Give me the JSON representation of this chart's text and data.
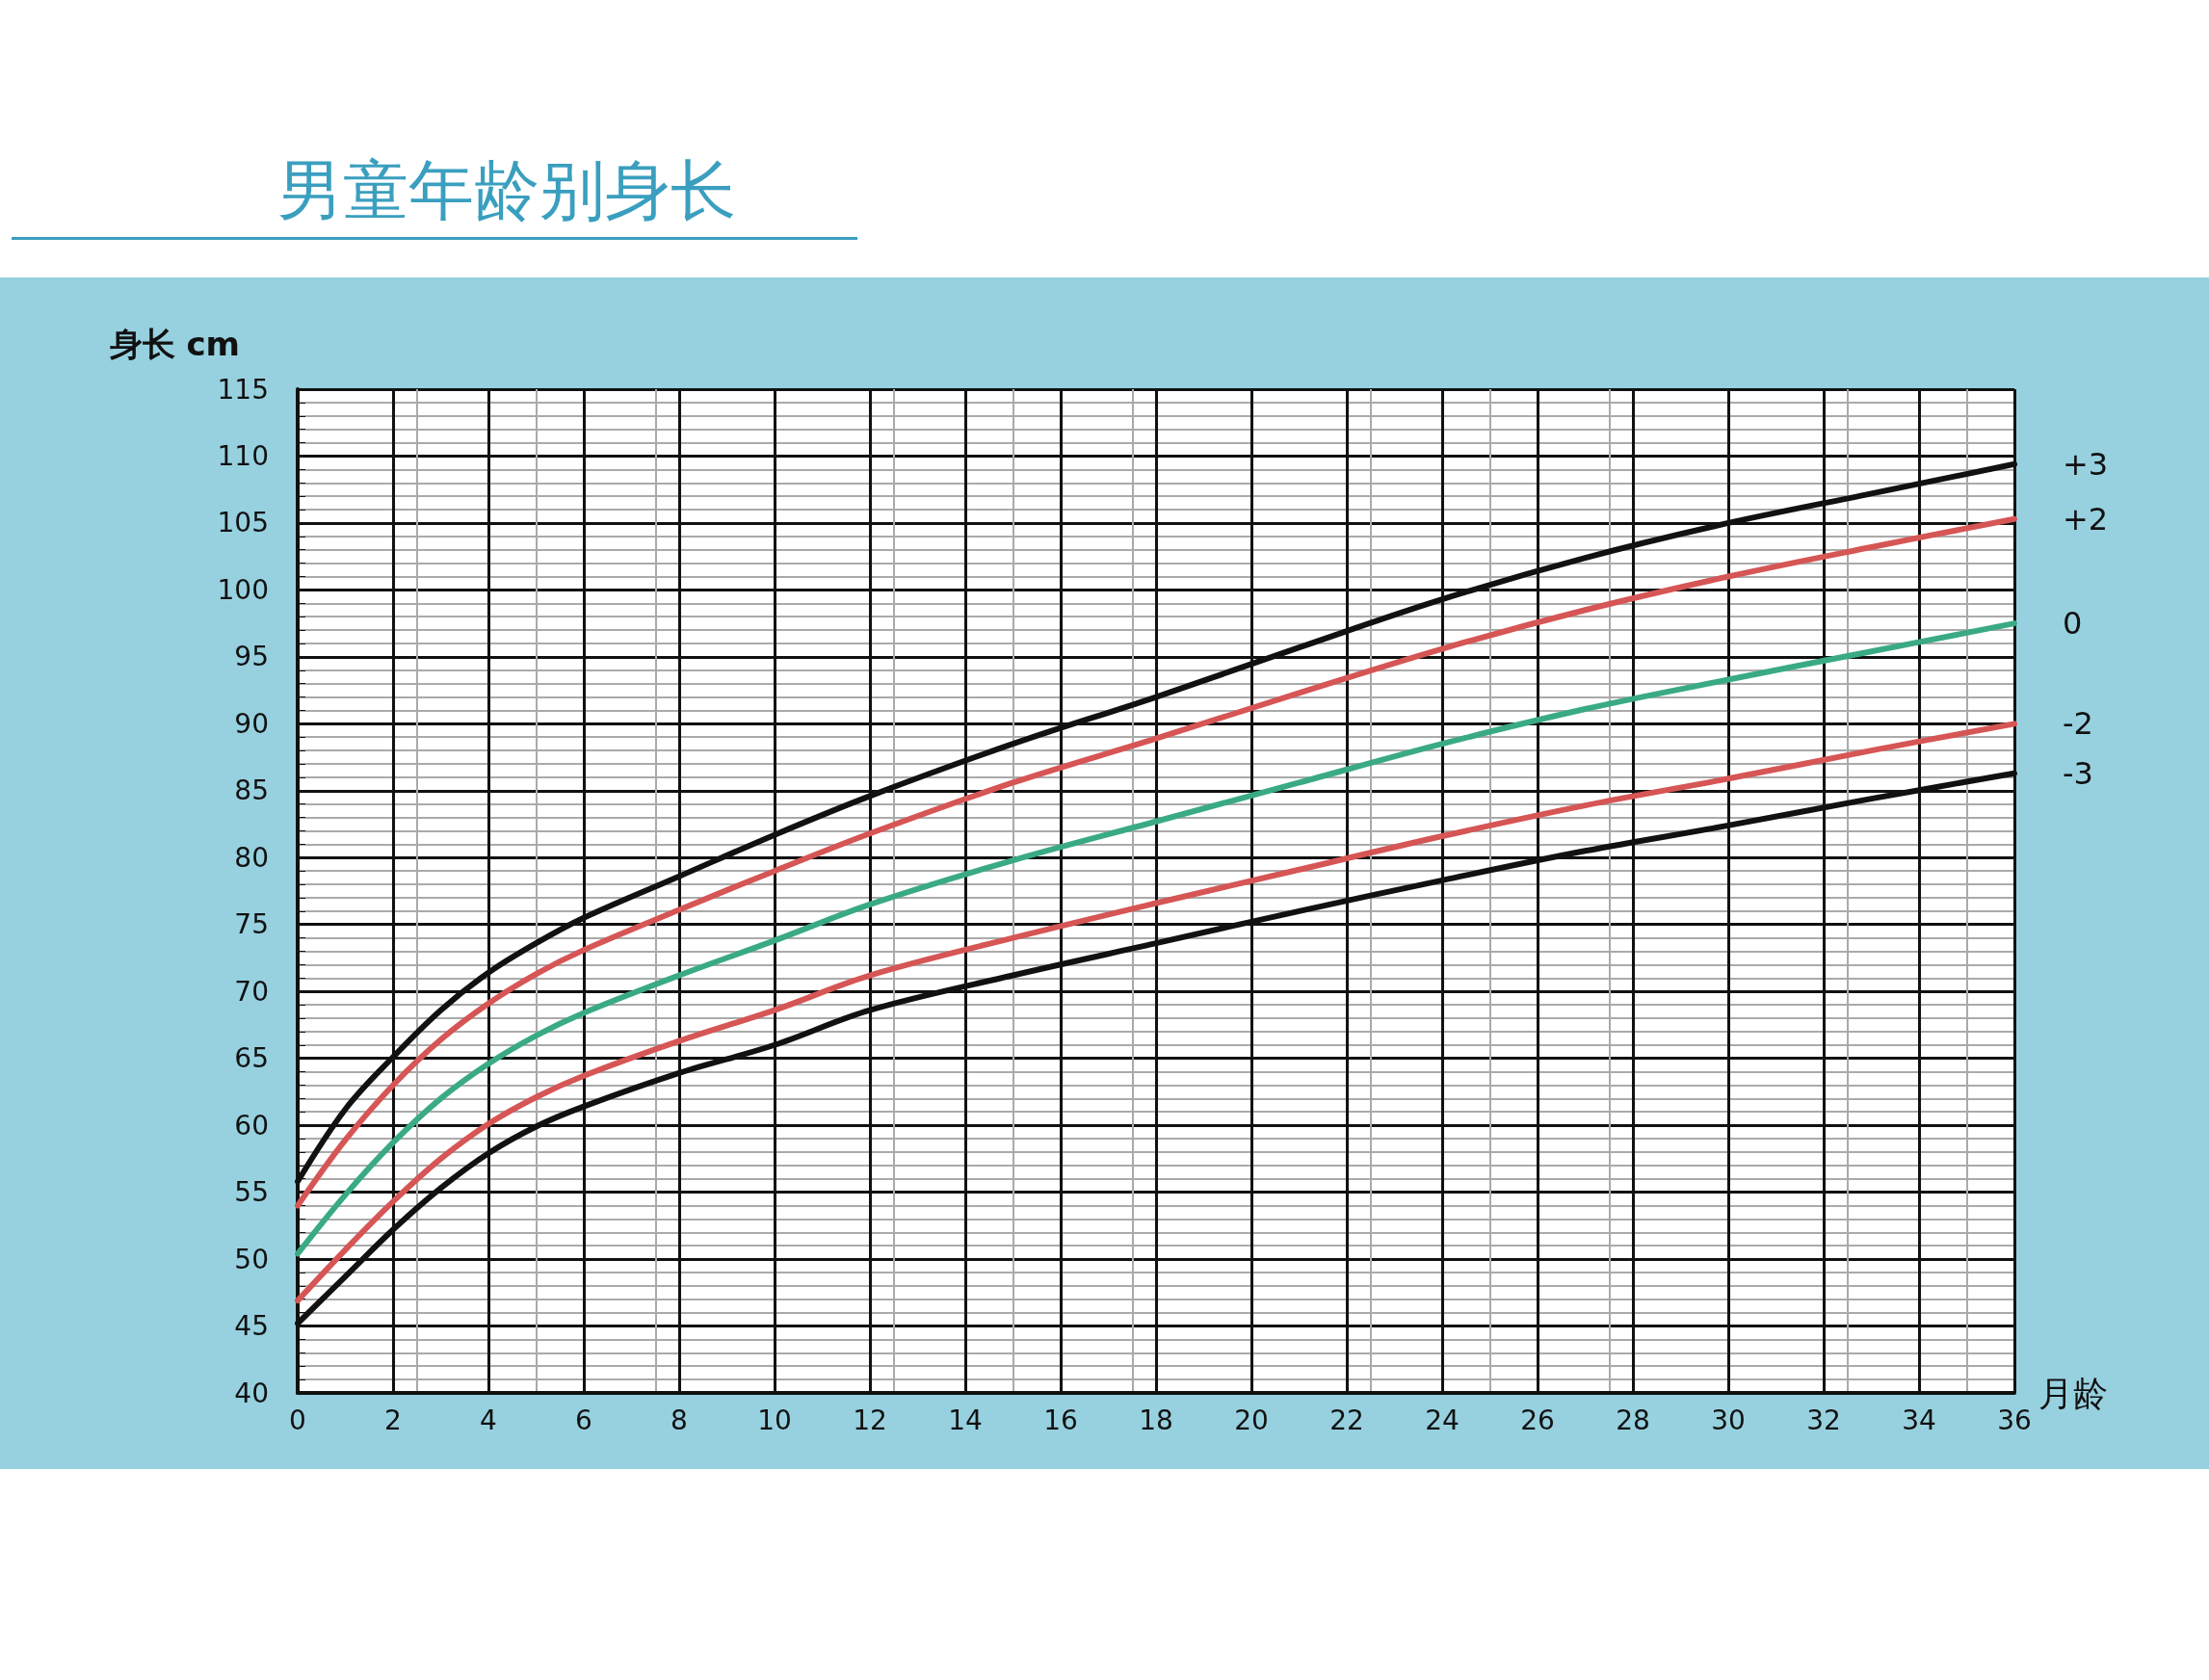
{
  "chart_data": {
    "type": "line",
    "title": "男童年龄别身长",
    "xlabel": "月龄",
    "ylabel": "身长 cm",
    "x": [
      0,
      1,
      2,
      3,
      4,
      5,
      6,
      8,
      10,
      12,
      15,
      18,
      21,
      24,
      27,
      30,
      33,
      36
    ],
    "series": [
      {
        "name": "+3",
        "color": "#111111",
        "values": [
          55.8,
          61.2,
          65.1,
          68.6,
          71.4,
          73.6,
          75.5,
          78.6,
          81.7,
          84.6,
          88.5,
          92.0,
          95.7,
          99.3,
          102.4,
          105.0,
          107.2,
          109.4
        ]
      },
      {
        "name": "+2",
        "color": "#d65555",
        "values": [
          54.0,
          58.9,
          63.0,
          66.4,
          69.1,
          71.3,
          73.1,
          76.1,
          79.0,
          81.8,
          85.6,
          88.9,
          92.3,
          95.6,
          98.5,
          101.0,
          103.2,
          105.3
        ]
      },
      {
        "name": "0",
        "color": "#3aaa85",
        "values": [
          50.4,
          54.8,
          58.7,
          62.0,
          64.6,
          66.7,
          68.4,
          71.2,
          73.8,
          76.5,
          79.8,
          82.7,
          85.6,
          88.5,
          91.1,
          93.3,
          95.4,
          97.5
        ]
      },
      {
        "name": "-2",
        "color": "#d65555",
        "values": [
          46.9,
          50.7,
          54.3,
          57.5,
          60.1,
          62.1,
          63.7,
          66.3,
          68.6,
          71.2,
          74.0,
          76.6,
          79.1,
          81.6,
          83.9,
          85.9,
          88.0,
          90.0
        ]
      },
      {
        "name": "-3",
        "color": "#111111",
        "values": [
          45.2,
          48.7,
          52.2,
          55.3,
          57.9,
          59.9,
          61.4,
          63.9,
          66.0,
          68.6,
          71.2,
          73.6,
          76.0,
          78.3,
          80.5,
          82.4,
          84.4,
          86.3
        ]
      }
    ],
    "xlim": [
      0,
      36
    ],
    "xticks": [
      0,
      2,
      4,
      6,
      8,
      10,
      12,
      14,
      16,
      18,
      20,
      22,
      24,
      26,
      28,
      30,
      32,
      34,
      36
    ],
    "ylim": [
      40,
      115
    ],
    "yticks": [
      40,
      45,
      50,
      55,
      60,
      65,
      70,
      75,
      80,
      85,
      90,
      95,
      100,
      105,
      110,
      115
    ],
    "grid": true,
    "legend": false,
    "marker": "none",
    "line_style": "solid"
  }
}
